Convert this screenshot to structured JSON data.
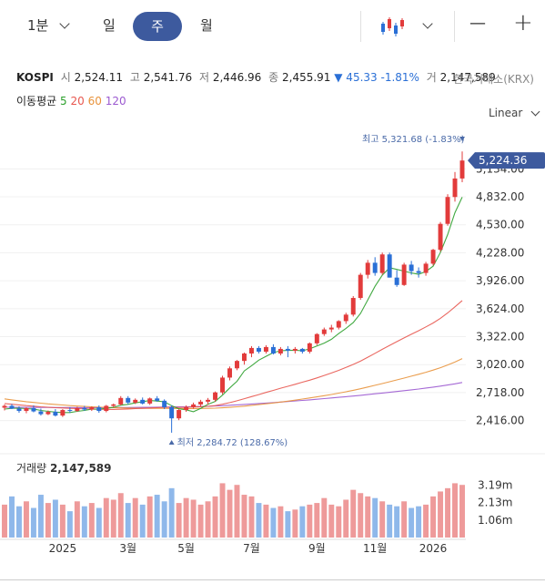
{
  "toolbar": {
    "interval": "1분",
    "periods": [
      "일",
      "주",
      "월"
    ],
    "active_period": "주",
    "minus": "—",
    "plus": "+"
  },
  "info": {
    "name": "KOSPI",
    "open_label": "시",
    "open": "2,524.11",
    "high_label": "고",
    "high": "2,541.76",
    "low_label": "저",
    "low": "2,446.96",
    "close_label": "종",
    "close": "2,455.91",
    "change": "▼ 45.33",
    "change_pct": "-1.81%",
    "vol_label": "거",
    "volume": "2,147,589",
    "exchange": "한국거래소(KRX)"
  },
  "ma_legend": {
    "label": "이동평균",
    "periods": [
      {
        "n": "5",
        "color": "#2ca02c"
      },
      {
        "n": "20",
        "color": "#e8574f"
      },
      {
        "n": "60",
        "color": "#e8923a"
      },
      {
        "n": "120",
        "color": "#9b59d0"
      }
    ]
  },
  "scale_mode": "Linear",
  "chart_data": {
    "type": "candlestick",
    "x_labels": [
      {
        "label": "2025",
        "i": 8
      },
      {
        "label": "3월",
        "i": 17
      },
      {
        "label": "5월",
        "i": 25
      },
      {
        "label": "7월",
        "i": 34
      },
      {
        "label": "9월",
        "i": 43
      },
      {
        "label": "11월",
        "i": 51
      },
      {
        "label": "2026",
        "i": 59
      }
    ],
    "y_ticks": [
      2416,
      2718,
      3020,
      3322,
      3624,
      3926,
      4228,
      4530,
      4832,
      5134
    ],
    "y_tick_labels": [
      "2,416.00",
      "2,718.00",
      "3,020.00",
      "3,322.00",
      "3,624.00",
      "3,926.00",
      "4,228.00",
      "4,530.00",
      "4,832.00",
      "5,134.00"
    ],
    "y_range": [
      2186,
      5580
    ],
    "current_price": 5224.36,
    "current_label": "5,224.36",
    "high_annotation": "최고 5,321.68 (-1.83%)",
    "low_annotation": "최저 2,284.72 (128.67%)",
    "volume_label": "거래량",
    "volume_value": "2,147,589",
    "volume_ticks": [
      {
        "v": 1.06,
        "label": "1.06m"
      },
      {
        "v": 2.13,
        "label": "2.13m"
      },
      {
        "v": 3.19,
        "label": "3.19m"
      }
    ],
    "volume_max": 3.6,
    "ohlc": [
      [
        2555,
        2590,
        2525,
        2575
      ],
      [
        2575,
        2595,
        2540,
        2545
      ],
      [
        2545,
        2570,
        2500,
        2520
      ],
      [
        2520,
        2560,
        2495,
        2550
      ],
      [
        2550,
        2580,
        2505,
        2515
      ],
      [
        2515,
        2545,
        2470,
        2485
      ],
      [
        2485,
        2525,
        2475,
        2510
      ],
      [
        2510,
        2540,
        2460,
        2470
      ],
      [
        2470,
        2540,
        2455,
        2530
      ],
      [
        2530,
        2560,
        2500,
        2520
      ],
      [
        2520,
        2565,
        2510,
        2550
      ],
      [
        2550,
        2575,
        2520,
        2535
      ],
      [
        2535,
        2570,
        2520,
        2560
      ],
      [
        2560,
        2580,
        2500,
        2520
      ],
      [
        2520,
        2585,
        2505,
        2575
      ],
      [
        2575,
        2600,
        2560,
        2590
      ],
      [
        2590,
        2680,
        2580,
        2660
      ],
      [
        2660,
        2680,
        2590,
        2610
      ],
      [
        2610,
        2655,
        2595,
        2640
      ],
      [
        2640,
        2665,
        2590,
        2600
      ],
      [
        2600,
        2665,
        2585,
        2655
      ],
      [
        2655,
        2680,
        2620,
        2630
      ],
      [
        2630,
        2645,
        2540,
        2560
      ],
      [
        2560,
        2580,
        2285,
        2440
      ],
      [
        2440,
        2540,
        2420,
        2530
      ],
      [
        2530,
        2580,
        2510,
        2560
      ],
      [
        2560,
        2610,
        2545,
        2590
      ],
      [
        2590,
        2640,
        2570,
        2620
      ],
      [
        2620,
        2660,
        2590,
        2640
      ],
      [
        2640,
        2730,
        2620,
        2720
      ],
      [
        2720,
        2900,
        2700,
        2880
      ],
      [
        2880,
        3000,
        2850,
        2980
      ],
      [
        2980,
        3070,
        2960,
        3060
      ],
      [
        3060,
        3150,
        3020,
        3140
      ],
      [
        3140,
        3220,
        3100,
        3200
      ],
      [
        3200,
        3220,
        3140,
        3160
      ],
      [
        3160,
        3230,
        3140,
        3210
      ],
      [
        3210,
        3240,
        3130,
        3140
      ],
      [
        3140,
        3210,
        3120,
        3190
      ],
      [
        3190,
        3220,
        3100,
        3170
      ],
      [
        3170,
        3210,
        3140,
        3190
      ],
      [
        3190,
        3200,
        3140,
        3160
      ],
      [
        3160,
        3260,
        3140,
        3250
      ],
      [
        3250,
        3360,
        3230,
        3350
      ],
      [
        3350,
        3420,
        3330,
        3400
      ],
      [
        3400,
        3450,
        3370,
        3420
      ],
      [
        3420,
        3500,
        3400,
        3490
      ],
      [
        3490,
        3580,
        3460,
        3560
      ],
      [
        3560,
        3760,
        3540,
        3740
      ],
      [
        3740,
        4010,
        3720,
        3990
      ],
      [
        3990,
        4150,
        3950,
        4120
      ],
      [
        4120,
        4180,
        3980,
        4010
      ],
      [
        4010,
        4230,
        3990,
        4210
      ],
      [
        4210,
        4230,
        3960,
        3960
      ],
      [
        3960,
        4040,
        3860,
        3880
      ],
      [
        3880,
        4120,
        3870,
        4100
      ],
      [
        4100,
        4140,
        3990,
        4030
      ],
      [
        4030,
        4070,
        3960,
        4010
      ],
      [
        4010,
        4130,
        3980,
        4110
      ],
      [
        4110,
        4270,
        4090,
        4260
      ],
      [
        4260,
        4560,
        4240,
        4540
      ],
      [
        4540,
        4860,
        4520,
        4830
      ],
      [
        4830,
        5100,
        4780,
        5030
      ],
      [
        5030,
        5322,
        4990,
        5224
      ]
    ],
    "volume": [
      2.0,
      2.5,
      1.9,
      2.2,
      1.8,
      2.6,
      2.1,
      2.3,
      2.0,
      1.6,
      2.2,
      1.9,
      2.1,
      1.8,
      2.4,
      2.3,
      2.7,
      2.1,
      2.4,
      2.0,
      2.5,
      2.6,
      2.2,
      3.0,
      2.1,
      2.4,
      2.3,
      2.0,
      2.2,
      2.5,
      3.3,
      2.9,
      3.2,
      2.6,
      2.5,
      2.1,
      2.0,
      1.8,
      1.9,
      1.6,
      1.7,
      1.9,
      2.0,
      2.1,
      2.4,
      2.0,
      1.9,
      2.3,
      2.9,
      2.7,
      2.5,
      2.4,
      2.2,
      2.0,
      1.9,
      2.2,
      1.8,
      1.9,
      2.0,
      2.5,
      2.8,
      3.0,
      3.3,
      3.2
    ],
    "ma5": [
      2540,
      2548,
      2550,
      2545,
      2541,
      2525,
      2516,
      2508,
      2503,
      2503,
      2516,
      2525,
      2539,
      2540,
      2548,
      2559,
      2581,
      2591,
      2607,
      2620,
      2633,
      2627,
      2619,
      2577,
      2543,
      2532,
      2512,
      2548,
      2592,
      2622,
      2691,
      2768,
      2840,
      2952,
      3008,
      3068,
      3110,
      3150,
      3170,
      3174,
      3176,
      3170,
      3190,
      3222,
      3252,
      3294,
      3356,
      3412,
      3474,
      3572,
      3718,
      3866,
      3986,
      4066,
      4048,
      4030,
      4010,
      3996,
      4026,
      4084,
      4230,
      4424,
      4660,
      4828
    ],
    "ma20": [
      2600,
      2592,
      2585,
      2578,
      2572,
      2565,
      2560,
      2555,
      2552,
      2548,
      2545,
      2543,
      2540,
      2538,
      2537,
      2536,
      2538,
      2541,
      2545,
      2548,
      2552,
      2556,
      2560,
      2560,
      2558,
      2560,
      2563,
      2566,
      2570,
      2578,
      2592,
      2610,
      2630,
      2652,
      2675,
      2697,
      2720,
      2742,
      2765,
      2786,
      2808,
      2830,
      2852,
      2877,
      2903,
      2930,
      2958,
      2990,
      3022,
      3058,
      3100,
      3142,
      3186,
      3228,
      3268,
      3308,
      3348,
      3386,
      3428,
      3470,
      3520,
      3578,
      3644,
      3712
    ],
    "ma60": [
      2650,
      2640,
      2630,
      2620,
      2612,
      2604,
      2596,
      2590,
      2584,
      2578,
      2573,
      2569,
      2565,
      2561,
      2558,
      2555,
      2553,
      2551,
      2550,
      2549,
      2548,
      2548,
      2548,
      2547,
      2546,
      2546,
      2546,
      2547,
      2548,
      2550,
      2554,
      2559,
      2565,
      2572,
      2580,
      2588,
      2597,
      2606,
      2616,
      2626,
      2637,
      2648,
      2660,
      2672,
      2685,
      2698,
      2712,
      2727,
      2743,
      2760,
      2778,
      2797,
      2816,
      2835,
      2855,
      2875,
      2895,
      2916,
      2938,
      2961,
      2987,
      3016,
      3048,
      3085
    ],
    "ma120": [
      2560,
      2560,
      2560,
      2559,
      2559,
      2558,
      2558,
      2557,
      2557,
      2557,
      2556,
      2556,
      2556,
      2556,
      2556,
      2556,
      2557,
      2557,
      2558,
      2559,
      2560,
      2561,
      2562,
      2563,
      2564,
      2565,
      2567,
      2569,
      2571,
      2574,
      2577,
      2581,
      2585,
      2590,
      2595,
      2600,
      2605,
      2610,
      2616,
      2622,
      2628,
      2634,
      2640,
      2646,
      2653,
      2660,
      2667,
      2674,
      2681,
      2689,
      2697,
      2705,
      2713,
      2721,
      2730,
      2739,
      2748,
      2757,
      2767,
      2777,
      2788,
      2800,
      2813,
      2827
    ]
  }
}
